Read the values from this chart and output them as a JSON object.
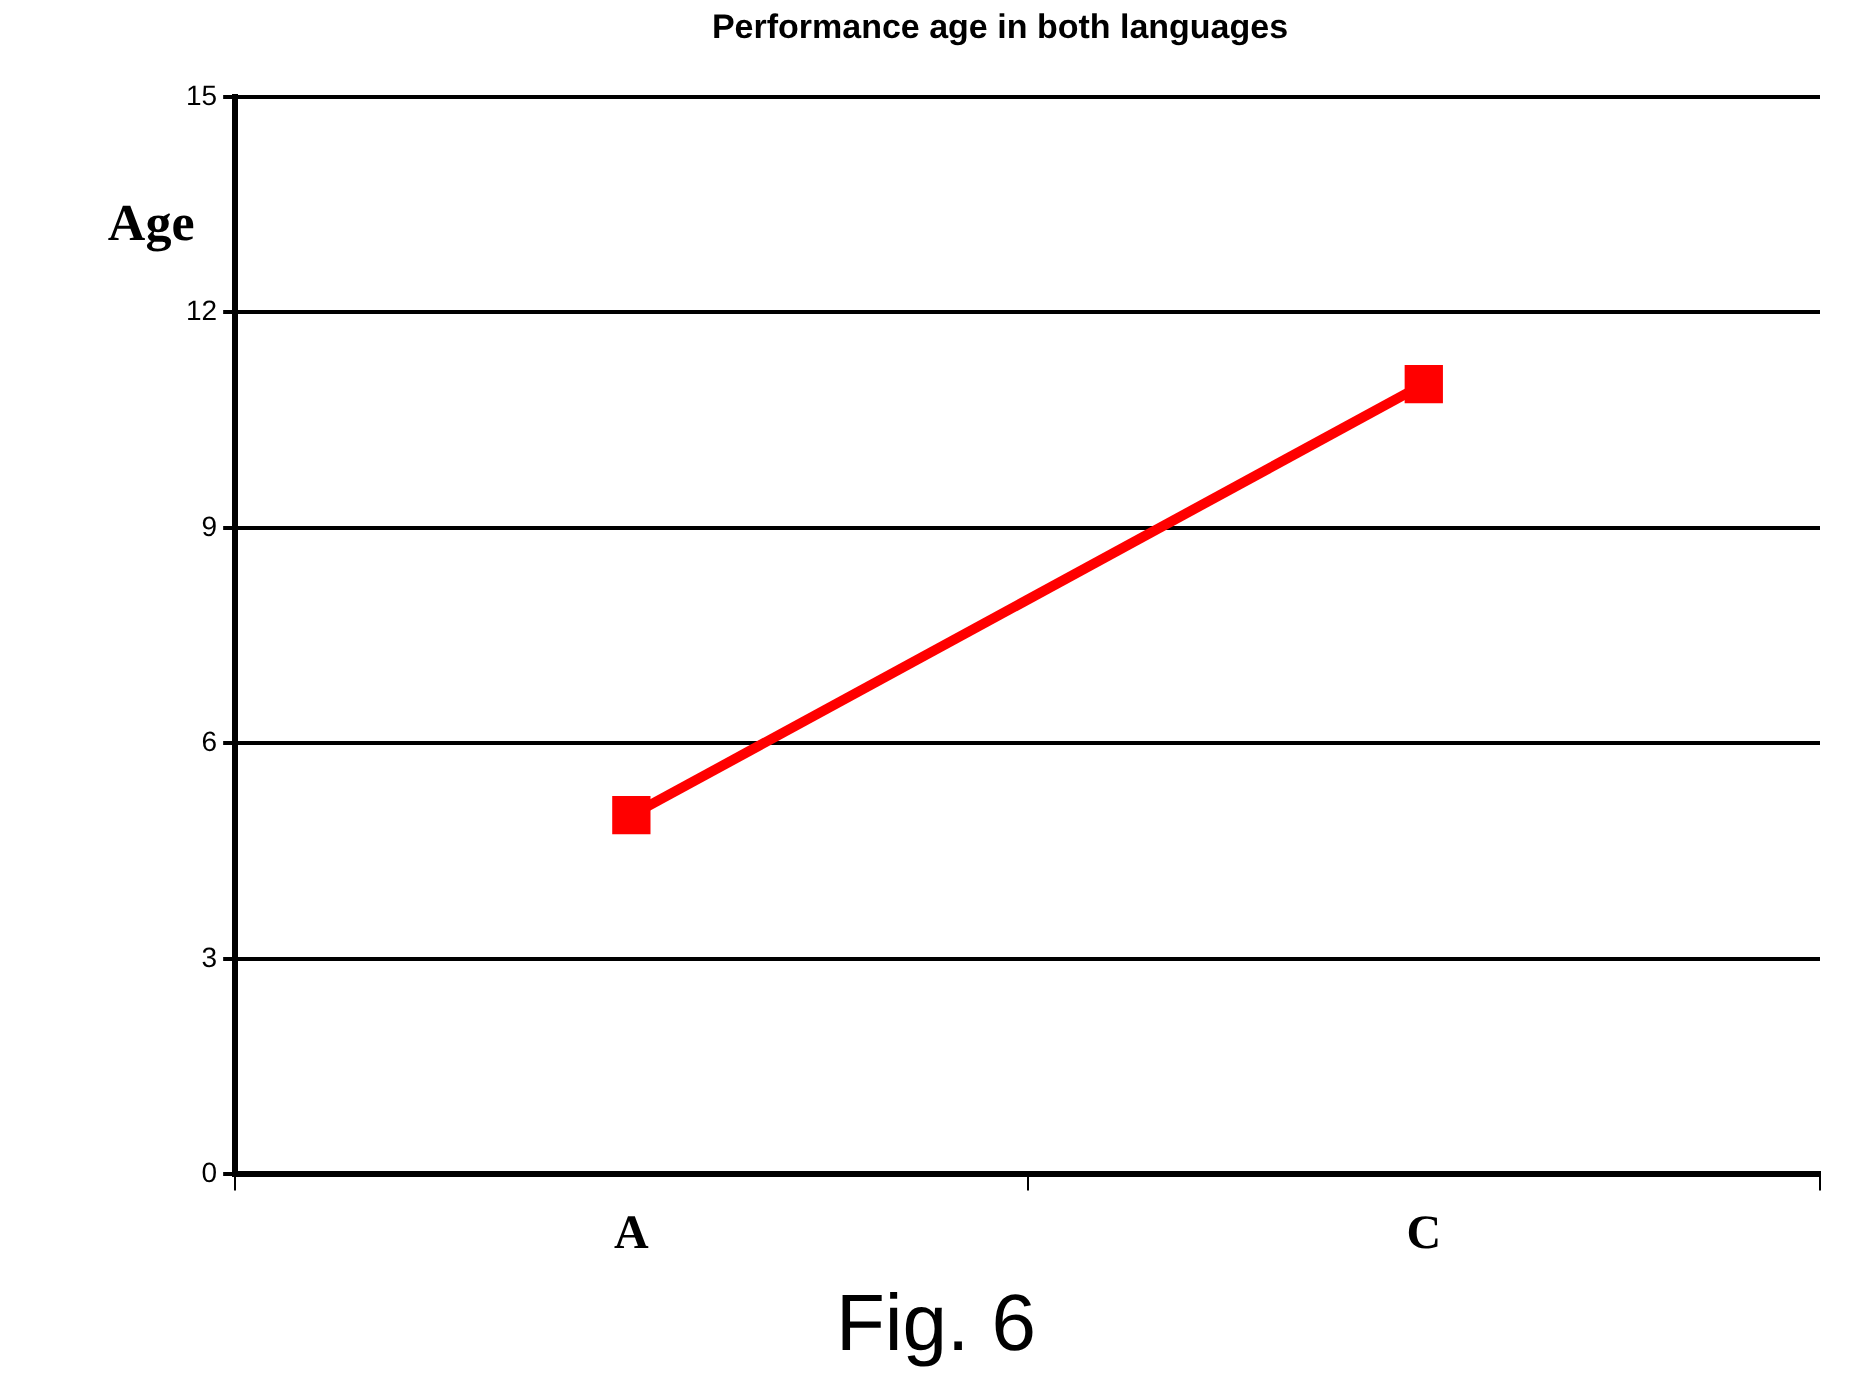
{
  "chart_data": {
    "type": "line",
    "title": "Performance age in both languages",
    "ylabel": "Age",
    "categories": [
      "A",
      "C"
    ],
    "series": [
      {
        "color": "#ff0000",
        "values": [
          5,
          11
        ]
      }
    ],
    "ylim": [
      0,
      15
    ],
    "yticks": [
      0,
      3,
      6,
      9,
      12,
      15
    ],
    "grid": "y",
    "legend": false,
    "marker": "square",
    "line_style": "solid",
    "annotations": [
      "Fig. 6"
    ]
  }
}
